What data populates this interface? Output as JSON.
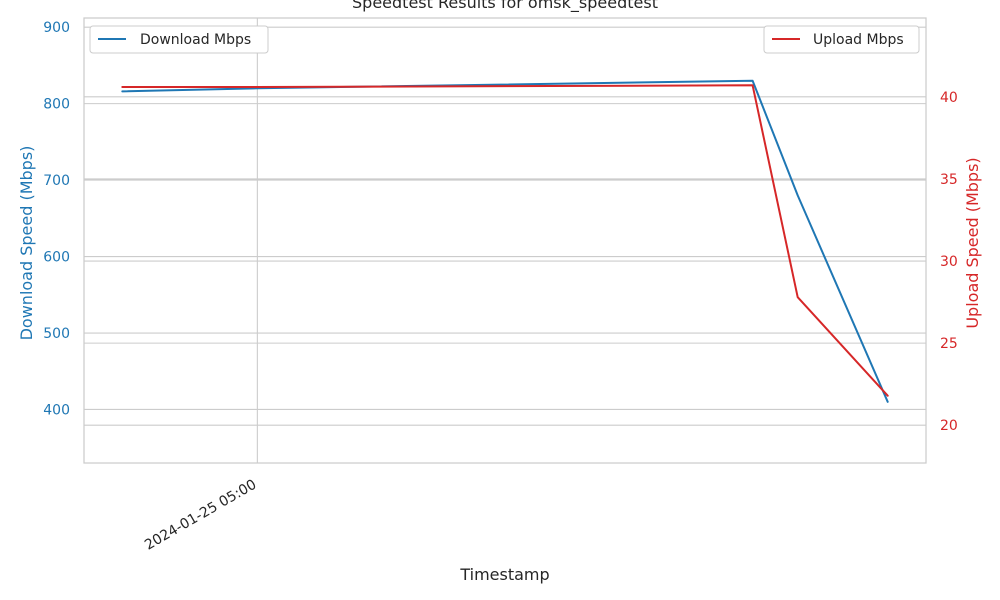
{
  "chart_data": {
    "type": "line",
    "title": "Speedtest Results for omsk_speedtest",
    "xlabel": "Timestamp",
    "ylabel_left": "Download Speed (Mbps)",
    "ylabel_right": "Upload Speed (Mbps)",
    "x_tick_labels": [
      "2024-01-25 05:00"
    ],
    "ylim_left": [
      330,
      912
    ],
    "ylim_right": [
      17.7,
      44.8
    ],
    "yticks_left": [
      400,
      500,
      600,
      700,
      800,
      900
    ],
    "yticks_right": [
      20,
      25,
      30,
      35,
      40
    ],
    "grid": true,
    "series": [
      {
        "name": "Download Mbps",
        "axis": "left",
        "color": "#1f77b4",
        "x": [
          "2024-01-25 04:30",
          "2024-01-25 05:00",
          "2024-01-25 06:50",
          "2024-01-25 07:00",
          "2024-01-25 07:20"
        ],
        "values": [
          816,
          820,
          830,
          680,
          410
        ]
      },
      {
        "name": "Upload Mbps",
        "axis": "right",
        "color": "#d62728",
        "x": [
          "2024-01-25 04:30",
          "2024-01-25 05:00",
          "2024-01-25 06:50",
          "2024-01-25 07:00",
          "2024-01-25 07:20"
        ],
        "values": [
          40.6,
          40.6,
          40.7,
          27.8,
          21.8
        ]
      }
    ],
    "legends": [
      {
        "label": "Download Mbps",
        "color": "#1f77b4",
        "placement": "top-left"
      },
      {
        "label": "Upload Mbps",
        "color": "#d62728",
        "placement": "top-right"
      }
    ],
    "colors": {
      "left_axis": "#1f77b4",
      "right_axis": "#d62728",
      "grid": "#cccccc",
      "frame": "#cccccc",
      "text": "#262626"
    }
  }
}
